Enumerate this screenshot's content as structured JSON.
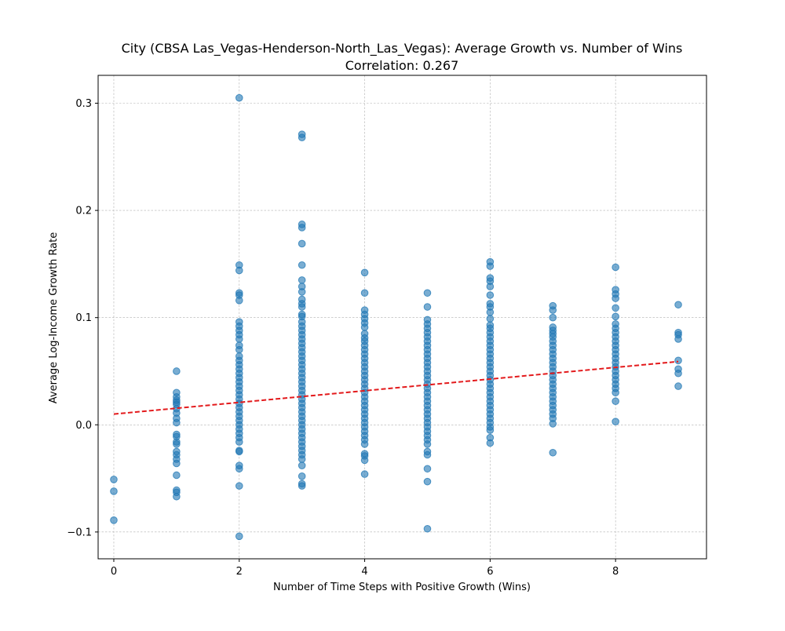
{
  "chart_data": {
    "type": "scatter",
    "title": "City (CBSA Las_Vegas-Henderson-North_Las_Vegas): Average Growth vs. Number of Wins",
    "subtitle": "Correlation: 0.267",
    "xlabel": "Number of Time Steps with Positive Growth (Wins)",
    "ylabel": "Average Log-Income Growth Rate",
    "xlim": [
      -0.25,
      9.45
    ],
    "ylim": [
      -0.125,
      0.326
    ],
    "xticks": [
      0,
      2,
      4,
      6,
      8
    ],
    "xtick_labels": [
      "0",
      "2",
      "4",
      "6",
      "8"
    ],
    "yticks": [
      -0.1,
      0.0,
      0.1,
      0.2,
      0.3
    ],
    "ytick_labels": [
      "−0.1",
      "0.0",
      "0.1",
      "0.2",
      "0.3"
    ],
    "grid": true,
    "colors": {
      "points": "#1f77b4",
      "trend": "#e31a1c",
      "grid": "#b0b0b0"
    },
    "series": [
      {
        "name": "",
        "points": [
          [
            0,
            -0.051
          ],
          [
            0,
            -0.062
          ],
          [
            0,
            -0.089
          ],
          [
            1,
            0.05
          ],
          [
            1,
            0.03
          ],
          [
            1,
            0.026
          ],
          [
            1,
            0.023
          ],
          [
            1,
            0.021
          ],
          [
            1,
            0.019
          ],
          [
            1,
            0.015
          ],
          [
            1,
            0.011
          ],
          [
            1,
            0.006
          ],
          [
            1,
            0.002
          ],
          [
            1,
            -0.009
          ],
          [
            1,
            -0.011
          ],
          [
            1,
            -0.016
          ],
          [
            1,
            -0.018
          ],
          [
            1,
            -0.025
          ],
          [
            1,
            -0.028
          ],
          [
            1,
            -0.032
          ],
          [
            1,
            -0.036
          ],
          [
            1,
            -0.047
          ],
          [
            1,
            -0.061
          ],
          [
            1,
            -0.063
          ],
          [
            1,
            -0.067
          ],
          [
            2,
            0.305
          ],
          [
            2,
            0.149
          ],
          [
            2,
            0.144
          ],
          [
            2,
            0.123
          ],
          [
            2,
            0.121
          ],
          [
            2,
            0.116
          ],
          [
            2,
            0.096
          ],
          [
            2,
            0.092
          ],
          [
            2,
            0.088
          ],
          [
            2,
            0.084
          ],
          [
            2,
            0.08
          ],
          [
            2,
            0.074
          ],
          [
            2,
            0.07
          ],
          [
            2,
            0.064
          ],
          [
            2,
            0.06
          ],
          [
            2,
            0.056
          ],
          [
            2,
            0.052
          ],
          [
            2,
            0.048
          ],
          [
            2,
            0.044
          ],
          [
            2,
            0.04
          ],
          [
            2,
            0.036
          ],
          [
            2,
            0.032
          ],
          [
            2,
            0.028
          ],
          [
            2,
            0.024
          ],
          [
            2,
            0.02
          ],
          [
            2,
            0.016
          ],
          [
            2,
            0.012
          ],
          [
            2,
            0.008
          ],
          [
            2,
            0.004
          ],
          [
            2,
            0.0
          ],
          [
            2,
            -0.004
          ],
          [
            2,
            -0.008
          ],
          [
            2,
            -0.012
          ],
          [
            2,
            -0.016
          ],
          [
            2,
            -0.024
          ],
          [
            2,
            -0.025
          ],
          [
            2,
            -0.038
          ],
          [
            2,
            -0.041
          ],
          [
            2,
            -0.057
          ],
          [
            2,
            -0.104
          ],
          [
            3,
            0.271
          ],
          [
            3,
            0.268
          ],
          [
            3,
            0.187
          ],
          [
            3,
            0.184
          ],
          [
            3,
            0.169
          ],
          [
            3,
            0.149
          ],
          [
            3,
            0.135
          ],
          [
            3,
            0.129
          ],
          [
            3,
            0.124
          ],
          [
            3,
            0.117
          ],
          [
            3,
            0.113
          ],
          [
            3,
            0.11
          ],
          [
            3,
            0.103
          ],
          [
            3,
            0.101
          ],
          [
            3,
            0.096
          ],
          [
            3,
            0.092
          ],
          [
            3,
            0.088
          ],
          [
            3,
            0.084
          ],
          [
            3,
            0.08
          ],
          [
            3,
            0.076
          ],
          [
            3,
            0.072
          ],
          [
            3,
            0.068
          ],
          [
            3,
            0.064
          ],
          [
            3,
            0.06
          ],
          [
            3,
            0.056
          ],
          [
            3,
            0.052
          ],
          [
            3,
            0.048
          ],
          [
            3,
            0.044
          ],
          [
            3,
            0.04
          ],
          [
            3,
            0.036
          ],
          [
            3,
            0.032
          ],
          [
            3,
            0.028
          ],
          [
            3,
            0.024
          ],
          [
            3,
            0.02
          ],
          [
            3,
            0.016
          ],
          [
            3,
            0.012
          ],
          [
            3,
            0.008
          ],
          [
            3,
            0.004
          ],
          [
            3,
            0.0
          ],
          [
            3,
            -0.004
          ],
          [
            3,
            -0.008
          ],
          [
            3,
            -0.012
          ],
          [
            3,
            -0.016
          ],
          [
            3,
            -0.02
          ],
          [
            3,
            -0.024
          ],
          [
            3,
            -0.028
          ],
          [
            3,
            -0.032
          ],
          [
            3,
            -0.038
          ],
          [
            3,
            -0.048
          ],
          [
            3,
            -0.055
          ],
          [
            3,
            -0.057
          ],
          [
            4,
            0.142
          ],
          [
            4,
            0.123
          ],
          [
            4,
            0.107
          ],
          [
            4,
            0.103
          ],
          [
            4,
            0.099
          ],
          [
            4,
            0.095
          ],
          [
            4,
            0.091
          ],
          [
            4,
            0.085
          ],
          [
            4,
            0.081
          ],
          [
            4,
            0.078
          ],
          [
            4,
            0.074
          ],
          [
            4,
            0.07
          ],
          [
            4,
            0.066
          ],
          [
            4,
            0.062
          ],
          [
            4,
            0.058
          ],
          [
            4,
            0.054
          ],
          [
            4,
            0.05
          ],
          [
            4,
            0.046
          ],
          [
            4,
            0.042
          ],
          [
            4,
            0.038
          ],
          [
            4,
            0.034
          ],
          [
            4,
            0.03
          ],
          [
            4,
            0.026
          ],
          [
            4,
            0.022
          ],
          [
            4,
            0.018
          ],
          [
            4,
            0.014
          ],
          [
            4,
            0.01
          ],
          [
            4,
            0.006
          ],
          [
            4,
            0.002
          ],
          [
            4,
            -0.002
          ],
          [
            4,
            -0.006
          ],
          [
            4,
            -0.01
          ],
          [
            4,
            -0.014
          ],
          [
            4,
            -0.018
          ],
          [
            4,
            -0.027
          ],
          [
            4,
            -0.029
          ],
          [
            4,
            -0.033
          ],
          [
            4,
            -0.046
          ],
          [
            5,
            0.123
          ],
          [
            5,
            0.11
          ],
          [
            5,
            0.098
          ],
          [
            5,
            0.094
          ],
          [
            5,
            0.09
          ],
          [
            5,
            0.086
          ],
          [
            5,
            0.082
          ],
          [
            5,
            0.078
          ],
          [
            5,
            0.074
          ],
          [
            5,
            0.07
          ],
          [
            5,
            0.066
          ],
          [
            5,
            0.062
          ],
          [
            5,
            0.058
          ],
          [
            5,
            0.054
          ],
          [
            5,
            0.05
          ],
          [
            5,
            0.046
          ],
          [
            5,
            0.042
          ],
          [
            5,
            0.038
          ],
          [
            5,
            0.034
          ],
          [
            5,
            0.03
          ],
          [
            5,
            0.026
          ],
          [
            5,
            0.022
          ],
          [
            5,
            0.018
          ],
          [
            5,
            0.014
          ],
          [
            5,
            0.01
          ],
          [
            5,
            0.006
          ],
          [
            5,
            0.002
          ],
          [
            5,
            -0.002
          ],
          [
            5,
            -0.006
          ],
          [
            5,
            -0.01
          ],
          [
            5,
            -0.014
          ],
          [
            5,
            -0.018
          ],
          [
            5,
            -0.025
          ],
          [
            5,
            -0.028
          ],
          [
            5,
            -0.041
          ],
          [
            5,
            -0.053
          ],
          [
            5,
            -0.097
          ],
          [
            6,
            0.152
          ],
          [
            6,
            0.148
          ],
          [
            6,
            0.137
          ],
          [
            6,
            0.134
          ],
          [
            6,
            0.129
          ],
          [
            6,
            0.121
          ],
          [
            6,
            0.113
          ],
          [
            6,
            0.11
          ],
          [
            6,
            0.105
          ],
          [
            6,
            0.099
          ],
          [
            6,
            0.093
          ],
          [
            6,
            0.09
          ],
          [
            6,
            0.086
          ],
          [
            6,
            0.082
          ],
          [
            6,
            0.078
          ],
          [
            6,
            0.074
          ],
          [
            6,
            0.07
          ],
          [
            6,
            0.066
          ],
          [
            6,
            0.062
          ],
          [
            6,
            0.058
          ],
          [
            6,
            0.054
          ],
          [
            6,
            0.05
          ],
          [
            6,
            0.046
          ],
          [
            6,
            0.042
          ],
          [
            6,
            0.038
          ],
          [
            6,
            0.034
          ],
          [
            6,
            0.03
          ],
          [
            6,
            0.026
          ],
          [
            6,
            0.022
          ],
          [
            6,
            0.018
          ],
          [
            6,
            0.014
          ],
          [
            6,
            0.01
          ],
          [
            6,
            0.006
          ],
          [
            6,
            0.002
          ],
          [
            6,
            -0.002
          ],
          [
            6,
            -0.005
          ],
          [
            6,
            -0.012
          ],
          [
            6,
            -0.017
          ],
          [
            7,
            0.111
          ],
          [
            7,
            0.107
          ],
          [
            7,
            0.1
          ],
          [
            7,
            0.091
          ],
          [
            7,
            0.088
          ],
          [
            7,
            0.085
          ],
          [
            7,
            0.082
          ],
          [
            7,
            0.078
          ],
          [
            7,
            0.074
          ],
          [
            7,
            0.07
          ],
          [
            7,
            0.066
          ],
          [
            7,
            0.062
          ],
          [
            7,
            0.058
          ],
          [
            7,
            0.054
          ],
          [
            7,
            0.05
          ],
          [
            7,
            0.046
          ],
          [
            7,
            0.042
          ],
          [
            7,
            0.038
          ],
          [
            7,
            0.034
          ],
          [
            7,
            0.03
          ],
          [
            7,
            0.026
          ],
          [
            7,
            0.022
          ],
          [
            7,
            0.018
          ],
          [
            7,
            0.014
          ],
          [
            7,
            0.01
          ],
          [
            7,
            0.006
          ],
          [
            7,
            0.001
          ],
          [
            7,
            -0.026
          ],
          [
            8,
            0.147
          ],
          [
            8,
            0.126
          ],
          [
            8,
            0.122
          ],
          [
            8,
            0.118
          ],
          [
            8,
            0.109
          ],
          [
            8,
            0.101
          ],
          [
            8,
            0.094
          ],
          [
            8,
            0.09
          ],
          [
            8,
            0.086
          ],
          [
            8,
            0.082
          ],
          [
            8,
            0.078
          ],
          [
            8,
            0.074
          ],
          [
            8,
            0.07
          ],
          [
            8,
            0.066
          ],
          [
            8,
            0.062
          ],
          [
            8,
            0.058
          ],
          [
            8,
            0.054
          ],
          [
            8,
            0.05
          ],
          [
            8,
            0.046
          ],
          [
            8,
            0.042
          ],
          [
            8,
            0.038
          ],
          [
            8,
            0.034
          ],
          [
            8,
            0.03
          ],
          [
            8,
            0.022
          ],
          [
            8,
            0.003
          ],
          [
            9,
            0.112
          ],
          [
            9,
            0.086
          ],
          [
            9,
            0.084
          ],
          [
            9,
            0.08
          ],
          [
            9,
            0.06
          ],
          [
            9,
            0.052
          ],
          [
            9,
            0.048
          ],
          [
            9,
            0.036
          ]
        ]
      }
    ],
    "trend_line": {
      "x": [
        0,
        9
      ],
      "y": [
        0.01,
        0.059
      ],
      "style": "dashed"
    }
  }
}
